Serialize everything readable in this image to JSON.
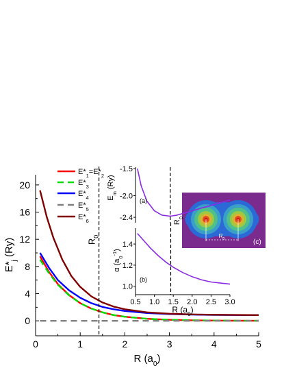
{
  "chart_data": [
    {
      "panel": "main",
      "type": "line",
      "xlabel": "R (a",
      "xlabel_sub": "0",
      "xlabel_end": ")",
      "ylabel": "E*",
      "ylabel_sub": "j",
      "ylabel_end": " (Ry)",
      "xlim": [
        0,
        5
      ],
      "ylim": [
        -2.2,
        21.5
      ],
      "xticks": [
        0,
        1,
        2,
        3,
        4,
        5
      ],
      "yticks": [
        0,
        4,
        8,
        12,
        16,
        20
      ],
      "vline": {
        "x": 1.42,
        "label": "R",
        "label_sub": "0"
      },
      "legend_position": "top-left",
      "series": [
        {
          "name": "E*1=E*2",
          "label_parts": [
            "E*",
            "1",
            "=E*",
            "2"
          ],
          "color": "#ff0000",
          "dash": "solid",
          "x": [
            0.1,
            0.3,
            0.5,
            0.75,
            1.0,
            1.25,
            1.5,
            1.75,
            2.0,
            2.5,
            3.0,
            3.5,
            4.0,
            4.5,
            5.0
          ],
          "y": [
            9.5,
            7.2,
            5.4,
            3.8,
            2.6,
            1.8,
            1.25,
            0.85,
            0.6,
            0.3,
            0.15,
            0.08,
            0.04,
            0.02,
            0.01
          ]
        },
        {
          "name": "E*3",
          "label_parts": [
            "E*",
            "3"
          ],
          "color": "#00e000",
          "dash": "dash",
          "x": [
            0.1,
            0.3,
            0.5,
            0.75,
            1.0,
            1.25,
            1.5,
            1.75,
            2.0,
            2.5,
            3.0,
            3.5,
            4.0,
            4.5,
            5.0
          ],
          "y": [
            9.0,
            7.0,
            5.3,
            3.75,
            2.6,
            1.8,
            1.25,
            0.85,
            0.6,
            0.3,
            0.15,
            0.08,
            0.04,
            0.02,
            0.01
          ]
        },
        {
          "name": "E*4",
          "label_parts": [
            "E*",
            "4"
          ],
          "color": "#0000ff",
          "dash": "solid",
          "x": [
            0.1,
            0.3,
            0.5,
            0.75,
            1.0,
            1.25,
            1.5,
            1.75,
            2.0,
            2.5,
            3.0,
            3.5,
            4.0,
            4.5,
            5.0
          ],
          "y": [
            10.0,
            7.8,
            6.0,
            4.5,
            3.4,
            2.6,
            2.05,
            1.7,
            1.45,
            1.15,
            1.0,
            0.92,
            0.88,
            0.86,
            0.85
          ]
        },
        {
          "name": "E*5",
          "label_parts": [
            "E*",
            "5"
          ],
          "color": "#808080",
          "dash": "dash",
          "x": [
            0.1,
            5.0
          ],
          "y": [
            0.0,
            0.0
          ]
        },
        {
          "name": "E*6",
          "label_parts": [
            "E*",
            "6"
          ],
          "color": "#800000",
          "dash": "solid",
          "x": [
            0.1,
            0.25,
            0.4,
            0.6,
            0.8,
            1.0,
            1.25,
            1.5,
            1.75,
            2.0,
            2.5,
            3.0,
            3.5,
            4.0,
            4.5,
            5.0
          ],
          "y": [
            19.2,
            15.3,
            12.2,
            9.0,
            6.6,
            5.0,
            3.6,
            2.7,
            2.1,
            1.7,
            1.25,
            1.05,
            0.95,
            0.9,
            0.87,
            0.85
          ]
        }
      ]
    },
    {
      "panel": "inset-a",
      "type": "line",
      "tag": "(a)",
      "ylabel": "E",
      "ylabel_sub": "m",
      "ylabel_end": " (Ry)",
      "xlim": [
        0.5,
        3.0
      ],
      "ylim": [
        -2.5,
        -1.45
      ],
      "yticks": [
        -2.4,
        -2.0,
        -1.5
      ],
      "ytick_labels": [
        "-2.4",
        "-2.0",
        "-1.5"
      ],
      "vline": {
        "x": 1.42,
        "label": "R",
        "label_sub": "0"
      },
      "series": [
        {
          "color": "#8a2be2",
          "x": [
            0.55,
            0.65,
            0.8,
            1.0,
            1.2,
            1.42,
            1.6,
            1.8,
            2.0,
            2.2,
            2.4,
            2.6,
            2.8,
            3.0
          ],
          "y": [
            -1.5,
            -1.82,
            -2.1,
            -2.28,
            -2.36,
            -2.38,
            -2.36,
            -2.32,
            -2.28,
            -2.24,
            -2.2,
            -2.16,
            -2.12,
            -2.08
          ]
        }
      ]
    },
    {
      "panel": "inset-b",
      "type": "line",
      "tag": "(b)",
      "ylabel": "α (a",
      "ylabel_sub": "0",
      "ylabel_sup": "-1",
      "ylabel_end": ")",
      "xlabel": "R (a",
      "xlabel_sub": "0",
      "xlabel_end": ")",
      "xlim": [
        0.5,
        3.0
      ],
      "ylim": [
        0.92,
        1.55
      ],
      "xticks": [
        0.5,
        1.0,
        1.5,
        2.0,
        2.5,
        3.0
      ],
      "xtick_labels": [
        "0.5",
        "1.0",
        "1.5",
        "2.0",
        "2.5",
        "3.0"
      ],
      "yticks": [
        1.0,
        1.2,
        1.4
      ],
      "ytick_labels": [
        "1.0",
        "1.2",
        "1.4"
      ],
      "series": [
        {
          "color": "#8a2be2",
          "x": [
            0.55,
            0.7,
            0.9,
            1.1,
            1.3,
            1.5,
            1.75,
            2.0,
            2.25,
            2.5,
            2.75,
            3.0
          ],
          "y": [
            1.5,
            1.44,
            1.36,
            1.29,
            1.23,
            1.18,
            1.13,
            1.09,
            1.06,
            1.04,
            1.03,
            1.02
          ]
        }
      ]
    }
  ],
  "inset_c": {
    "tag": "(c)",
    "distance_label": "R",
    "distance_label_sub": "0",
    "background_color": "#7b2a8e",
    "ring_colors": [
      "#2b6ad6",
      "#3aa0c8",
      "#4fc08a",
      "#a0c840",
      "#e0b030",
      "#e05020",
      "#d02010"
    ]
  }
}
